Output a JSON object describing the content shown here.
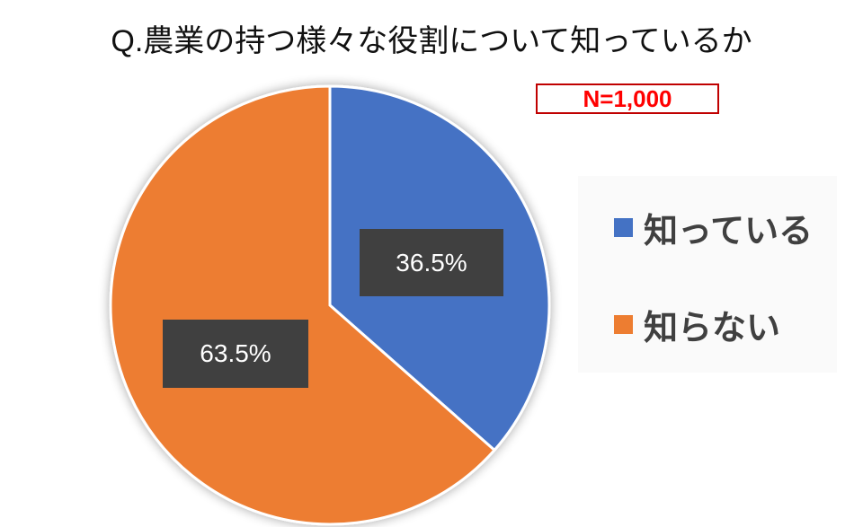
{
  "chart_data": {
    "type": "pie",
    "title": "Q.農業の持つ様々な役割について知っているか",
    "annotation": "N=1,000",
    "legend_position": "right",
    "slices": [
      {
        "name": "知っている",
        "value": 36.5,
        "label": "36.5%",
        "color": "#4472c4"
      },
      {
        "name": "知らない",
        "value": 63.5,
        "label": "63.5%",
        "color": "#ed7d31"
      }
    ]
  }
}
